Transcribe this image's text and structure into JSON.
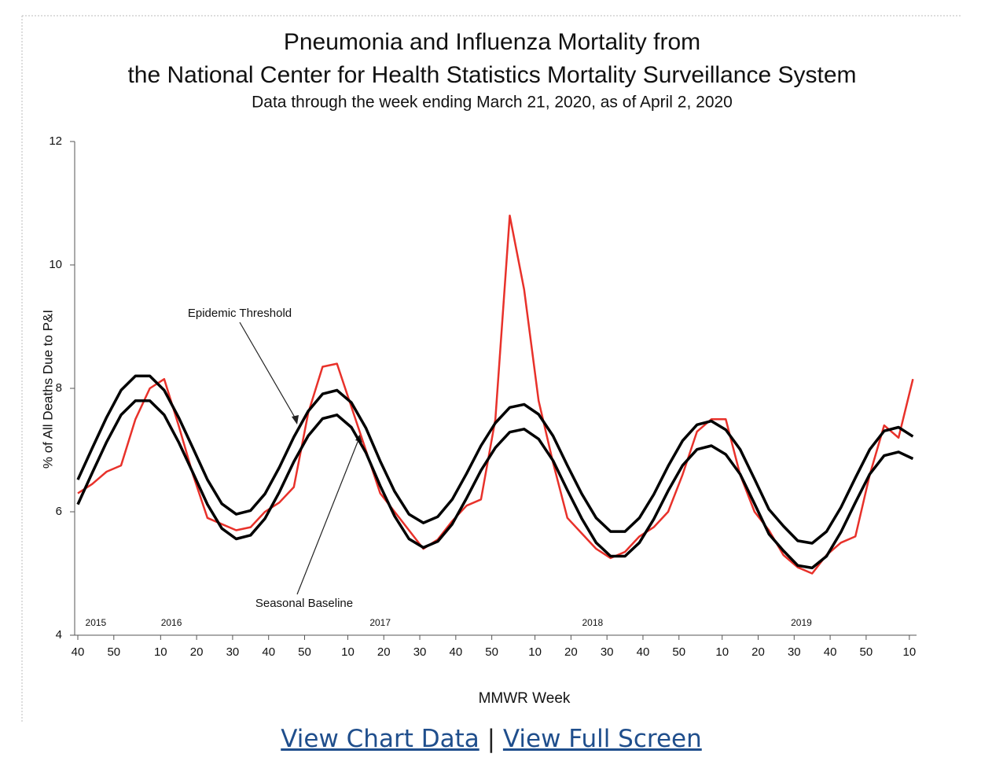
{
  "chart_data": {
    "type": "line",
    "title": [
      "Pneumonia and Influenza Mortality from",
      "the National Center for Health Statistics Mortality Surveillance System"
    ],
    "subtitle": "Data through the week ending March 21, 2020, as of April 2, 2020",
    "y_label": "% of All Deaths Due to P&I",
    "x_label": "MMWR Week",
    "x": [
      0,
      4,
      8,
      12,
      16,
      20,
      24,
      28,
      32,
      36,
      40,
      44,
      48,
      52,
      56,
      60,
      64,
      68,
      72,
      76,
      80,
      84,
      88,
      92,
      96,
      100,
      104,
      108,
      112,
      116,
      120,
      124,
      128,
      132,
      136,
      140,
      144,
      148,
      152,
      156,
      160,
      164,
      168,
      172,
      176,
      180,
      184,
      188,
      192,
      196,
      200,
      204,
      208,
      212,
      216,
      220,
      224,
      228,
      232
    ],
    "series": [
      {
        "color": "#e8312a",
        "width": 2.5,
        "values": [
          6.3,
          6.45,
          6.65,
          6.75,
          7.5,
          8.0,
          8.15,
          7.4,
          6.6,
          5.9,
          5.8,
          5.7,
          5.75,
          6.0,
          6.15,
          6.4,
          7.6,
          8.35,
          8.4,
          7.7,
          7.0,
          6.3,
          6.0,
          5.7,
          5.4,
          5.55,
          5.85,
          6.1,
          6.2,
          7.5,
          10.8,
          9.6,
          7.8,
          6.8,
          5.9,
          5.65,
          5.4,
          5.25,
          5.35,
          5.6,
          5.75,
          6.0,
          6.6,
          7.3,
          7.5,
          7.5,
          6.6,
          6.0,
          5.7,
          5.3,
          5.1,
          5.0,
          5.3,
          5.5,
          5.6,
          6.6,
          7.4,
          7.2,
          8.15
        ]
      },
      {
        "name": "Epidemic Threshold",
        "color": "#000000",
        "width": 3.5,
        "values": [
          6.52,
          7.03,
          7.53,
          7.97,
          8.2,
          8.2,
          7.97,
          7.53,
          7.03,
          6.52,
          6.13,
          5.96,
          6.02,
          6.29,
          6.72,
          7.21,
          7.63,
          7.91,
          7.97,
          7.77,
          7.36,
          6.82,
          6.33,
          5.96,
          5.82,
          5.92,
          6.2,
          6.62,
          7.07,
          7.44,
          7.69,
          7.74,
          7.58,
          7.23,
          6.75,
          6.29,
          5.9,
          5.68,
          5.68,
          5.9,
          6.28,
          6.74,
          7.15,
          7.41,
          7.47,
          7.33,
          7.01,
          6.53,
          6.04,
          5.77,
          5.53,
          5.49,
          5.68,
          6.07,
          6.55,
          7.01,
          7.31,
          7.37,
          7.22
        ]
      },
      {
        "name": "Seasonal Baseline",
        "color": "#000000",
        "width": 3.5,
        "values": [
          6.12,
          6.63,
          7.13,
          7.57,
          7.8,
          7.8,
          7.57,
          7.13,
          6.63,
          6.12,
          5.73,
          5.56,
          5.62,
          5.89,
          6.32,
          6.81,
          7.23,
          7.51,
          7.57,
          7.37,
          6.96,
          6.42,
          5.93,
          5.56,
          5.42,
          5.52,
          5.8,
          6.22,
          6.67,
          7.04,
          7.29,
          7.34,
          7.18,
          6.83,
          6.35,
          5.89,
          5.5,
          5.28,
          5.28,
          5.5,
          5.88,
          6.34,
          6.75,
          7.01,
          7.07,
          6.93,
          6.61,
          6.13,
          5.64,
          5.37,
          5.13,
          5.09,
          5.28,
          5.67,
          6.15,
          6.61,
          6.91,
          6.97,
          6.86
        ]
      }
    ],
    "xlim": [
      0,
      233
    ],
    "xticks": [
      {
        "value": 0,
        "label": "40"
      },
      {
        "value": 10,
        "label": "50"
      },
      {
        "value": 23,
        "label": "10"
      },
      {
        "value": 33,
        "label": "20"
      },
      {
        "value": 43,
        "label": "30"
      },
      {
        "value": 53,
        "label": "40"
      },
      {
        "value": 63,
        "label": "50"
      },
      {
        "value": 75,
        "label": "10"
      },
      {
        "value": 85,
        "label": "20"
      },
      {
        "value": 95,
        "label": "30"
      },
      {
        "value": 105,
        "label": "40"
      },
      {
        "value": 115,
        "label": "50"
      },
      {
        "value": 127,
        "label": "10"
      },
      {
        "value": 137,
        "label": "20"
      },
      {
        "value": 147,
        "label": "30"
      },
      {
        "value": 157,
        "label": "40"
      },
      {
        "value": 167,
        "label": "50"
      },
      {
        "value": 179,
        "label": "10"
      },
      {
        "value": 189,
        "label": "20"
      },
      {
        "value": 199,
        "label": "30"
      },
      {
        "value": 209,
        "label": "40"
      },
      {
        "value": 219,
        "label": "50"
      },
      {
        "value": 231,
        "label": "10"
      }
    ],
    "ylim": [
      4,
      12
    ],
    "yticks": [
      4,
      6,
      8,
      10,
      12
    ],
    "year_labels": [
      {
        "x": 5,
        "label": "2015"
      },
      {
        "x": 26,
        "label": "2016"
      },
      {
        "x": 84,
        "label": "2017"
      },
      {
        "x": 143,
        "label": "2018"
      },
      {
        "x": 201,
        "label": "2019"
      }
    ]
  },
  "links": {
    "chart_data": "View Chart Data",
    "separator": "|",
    "full_screen": "View Full Screen"
  }
}
